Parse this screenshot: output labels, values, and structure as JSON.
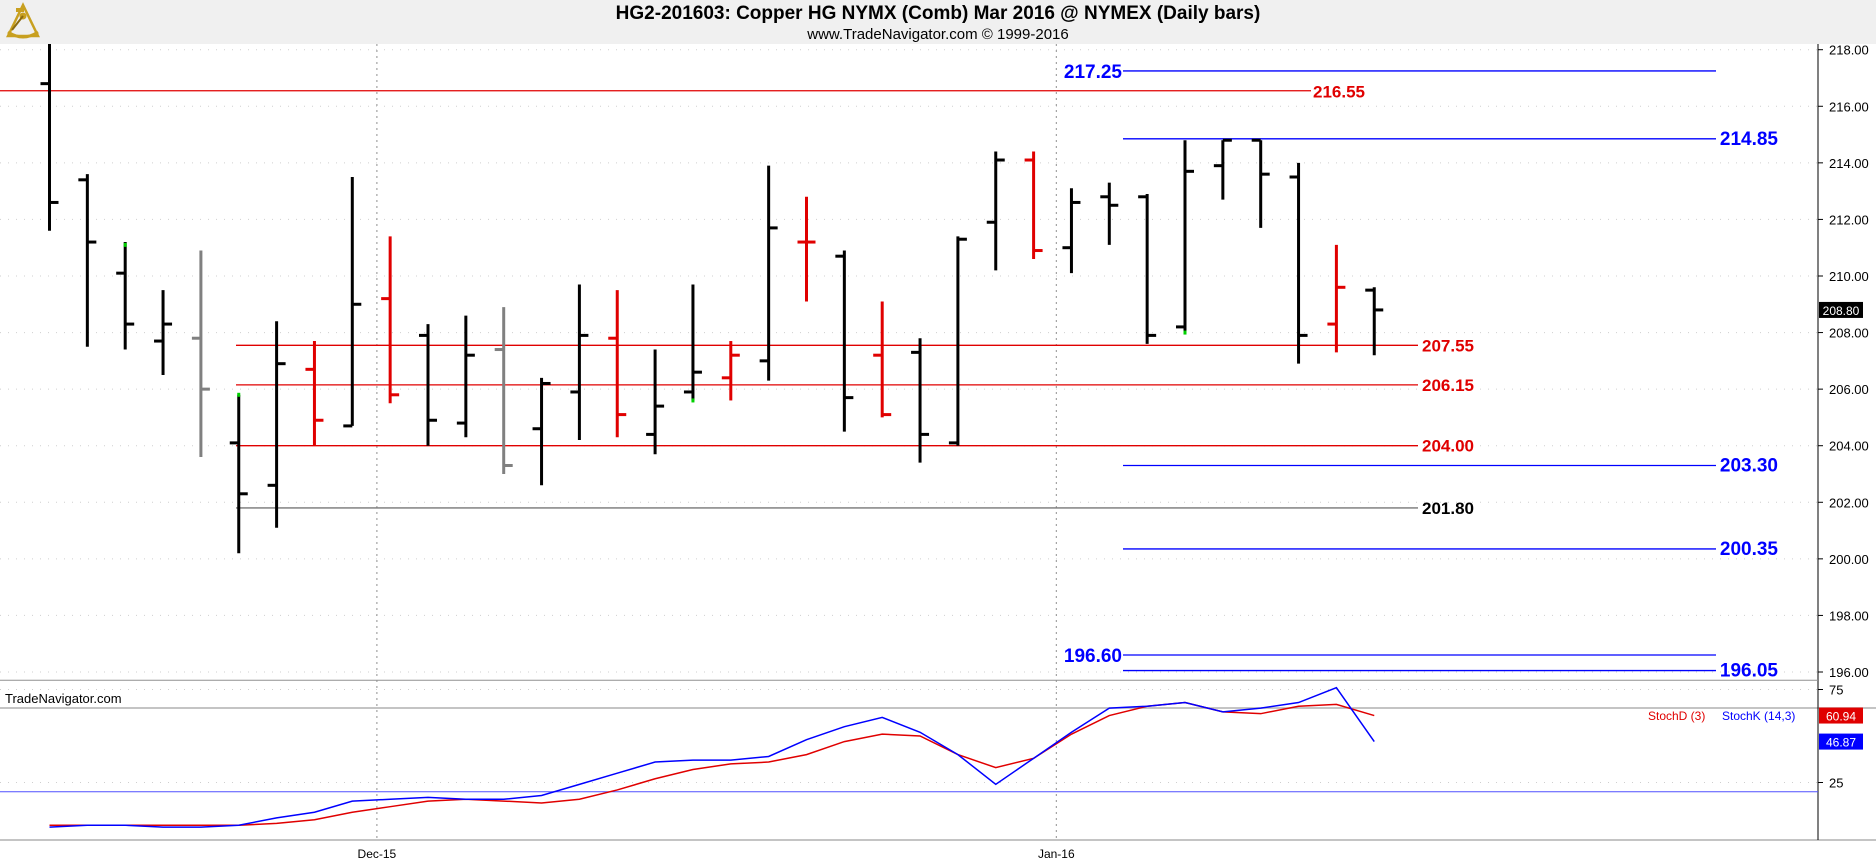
{
  "header": {
    "title": "HG2-201603:  Copper HG NYMX (Comb) Mar 2016 @ NYMEX  (Daily bars)",
    "copyright": "www.TradeNavigator.com © 1999-2016"
  },
  "watermark": "TradeNavigator.com",
  "chart_data": [
    {
      "type": "ohlc",
      "ylim": [
        194.5,
        218.3
      ],
      "y_ticks": [
        "196.00",
        "198.00",
        "200.00",
        "202.00",
        "204.00",
        "206.00",
        "208.00",
        "210.00",
        "212.00",
        "214.00",
        "216.00",
        "218.00"
      ],
      "x_ticks": [
        "Dec-15",
        "Jan-16"
      ],
      "last_price": "208.80",
      "bars": [
        {
          "o": 216.8,
          "h": 218.2,
          "l": 211.6,
          "c": 212.6,
          "color": "black"
        },
        {
          "o": 213.4,
          "h": 213.6,
          "l": 207.5,
          "c": 211.2,
          "color": "black"
        },
        {
          "o": 210.1,
          "h": 211.2,
          "l": 207.4,
          "c": 208.3,
          "color": "black"
        },
        {
          "o": 207.7,
          "h": 209.5,
          "l": 206.5,
          "c": 208.3,
          "color": "black"
        },
        {
          "o": 207.8,
          "h": 210.9,
          "l": 203.6,
          "c": 206.0,
          "color": "gray"
        },
        {
          "o": 204.1,
          "h": 205.8,
          "l": 200.2,
          "c": 202.3,
          "color": "black"
        },
        {
          "o": 202.6,
          "h": 208.4,
          "l": 201.1,
          "c": 206.9,
          "color": "black"
        },
        {
          "o": 206.7,
          "h": 207.7,
          "l": 204.0,
          "c": 204.9,
          "color": "red"
        },
        {
          "o": 204.7,
          "h": 213.5,
          "l": 204.7,
          "c": 209.0,
          "color": "black"
        },
        {
          "o": 209.2,
          "h": 211.4,
          "l": 205.5,
          "c": 205.8,
          "color": "red"
        },
        {
          "o": 207.9,
          "h": 208.3,
          "l": 204.0,
          "c": 204.9,
          "color": "black"
        },
        {
          "o": 204.8,
          "h": 208.6,
          "l": 204.3,
          "c": 207.2,
          "color": "black"
        },
        {
          "o": 207.4,
          "h": 208.9,
          "l": 203.0,
          "c": 203.3,
          "color": "gray"
        },
        {
          "o": 204.6,
          "h": 206.4,
          "l": 202.6,
          "c": 206.2,
          "color": "black"
        },
        {
          "o": 205.9,
          "h": 209.7,
          "l": 204.2,
          "c": 207.9,
          "color": "black"
        },
        {
          "o": 207.8,
          "h": 209.5,
          "l": 204.3,
          "c": 205.1,
          "color": "red"
        },
        {
          "o": 204.4,
          "h": 207.4,
          "l": 203.7,
          "c": 205.4,
          "color": "black"
        },
        {
          "o": 205.9,
          "h": 209.7,
          "l": 205.6,
          "c": 206.6,
          "color": "black"
        },
        {
          "o": 206.4,
          "h": 207.7,
          "l": 205.6,
          "c": 207.2,
          "color": "red"
        },
        {
          "o": 207.0,
          "h": 213.9,
          "l": 206.3,
          "c": 211.7,
          "color": "black"
        },
        {
          "o": 211.2,
          "h": 212.8,
          "l": 209.1,
          "c": 211.2,
          "color": "red"
        },
        {
          "o": 210.7,
          "h": 210.9,
          "l": 204.5,
          "c": 205.7,
          "color": "black"
        },
        {
          "o": 207.2,
          "h": 209.1,
          "l": 205.0,
          "c": 205.1,
          "color": "red"
        },
        {
          "o": 207.3,
          "h": 207.8,
          "l": 203.4,
          "c": 204.4,
          "color": "black"
        },
        {
          "o": 204.1,
          "h": 211.4,
          "l": 204.0,
          "c": 211.3,
          "color": "black"
        },
        {
          "o": 211.9,
          "h": 214.4,
          "l": 210.2,
          "c": 214.1,
          "color": "black"
        },
        {
          "o": 214.1,
          "h": 214.4,
          "l": 210.6,
          "c": 210.9,
          "color": "red"
        },
        {
          "o": 211.0,
          "h": 213.1,
          "l": 210.1,
          "c": 212.6,
          "color": "black"
        },
        {
          "o": 212.8,
          "h": 213.3,
          "l": 211.1,
          "c": 212.5,
          "color": "black"
        },
        {
          "o": 212.8,
          "h": 212.9,
          "l": 207.6,
          "c": 207.9,
          "color": "black"
        },
        {
          "o": 208.2,
          "h": 214.8,
          "l": 208.0,
          "c": 213.7,
          "color": "black"
        },
        {
          "o": 213.9,
          "h": 214.8,
          "l": 212.7,
          "c": 214.8,
          "color": "black"
        },
        {
          "o": 214.8,
          "h": 214.8,
          "l": 211.7,
          "c": 213.6,
          "color": "black"
        },
        {
          "o": 213.5,
          "h": 214.0,
          "l": 206.9,
          "c": 207.9,
          "color": "black"
        },
        {
          "o": 208.3,
          "h": 211.1,
          "l": 207.3,
          "c": 209.6,
          "color": "red"
        },
        {
          "o": 209.5,
          "h": 209.6,
          "l": 207.2,
          "c": 208.8,
          "color": "black"
        }
      ],
      "levels": [
        {
          "value": 217.25,
          "label": "217.25",
          "color": "#0000ff",
          "style": "blue-left"
        },
        {
          "value": 216.55,
          "label": "216.55",
          "color": "#e00000",
          "style": "red-long"
        },
        {
          "value": 214.85,
          "label": "214.85",
          "color": "#0000ff",
          "style": "blue-right"
        },
        {
          "value": 207.55,
          "label": "207.55",
          "color": "#e00000",
          "style": "red-mid"
        },
        {
          "value": 206.15,
          "label": "206.15",
          "color": "#e00000",
          "style": "red-mid"
        },
        {
          "value": 204.0,
          "label": "204.00",
          "color": "#e00000",
          "style": "red-mid"
        },
        {
          "value": 203.3,
          "label": "203.30",
          "color": "#0000ff",
          "style": "blue-right"
        },
        {
          "value": 201.8,
          "label": "201.80",
          "color": "#000000",
          "style": "black-mid"
        },
        {
          "value": 200.35,
          "label": "200.35",
          "color": "#0000ff",
          "style": "blue-right"
        },
        {
          "value": 196.6,
          "label": "196.60",
          "color": "#0000ff",
          "style": "blue-left"
        },
        {
          "value": 196.05,
          "label": "196.05",
          "color": "#0000ff",
          "style": "blue-right"
        }
      ]
    },
    {
      "type": "line",
      "ylim": [
        0,
        100
      ],
      "y_ticks": [
        "75",
        "25"
      ],
      "reference_lines": [
        80,
        20
      ],
      "series": [
        {
          "name": "StochD (3)",
          "color": "#e00000",
          "last": "60.94",
          "values": [
            2,
            2,
            2,
            2,
            2,
            2,
            3,
            5,
            9,
            12,
            15,
            16,
            15,
            14,
            16,
            21,
            27,
            32,
            35,
            36,
            40,
            47,
            51,
            50,
            40,
            33,
            38,
            51,
            61,
            66,
            68,
            63,
            62,
            66,
            67,
            61
          ]
        },
        {
          "name": "StochK (14,3)",
          "color": "#0000ff",
          "last": "46.87",
          "values": [
            1,
            2,
            2,
            1,
            1,
            2,
            6,
            9,
            15,
            16,
            17,
            16,
            16,
            18,
            24,
            30,
            36,
            37,
            37,
            39,
            48,
            55,
            60,
            52,
            40,
            24,
            38,
            52,
            65,
            66,
            68,
            63,
            65,
            68,
            76,
            47
          ]
        }
      ]
    }
  ]
}
